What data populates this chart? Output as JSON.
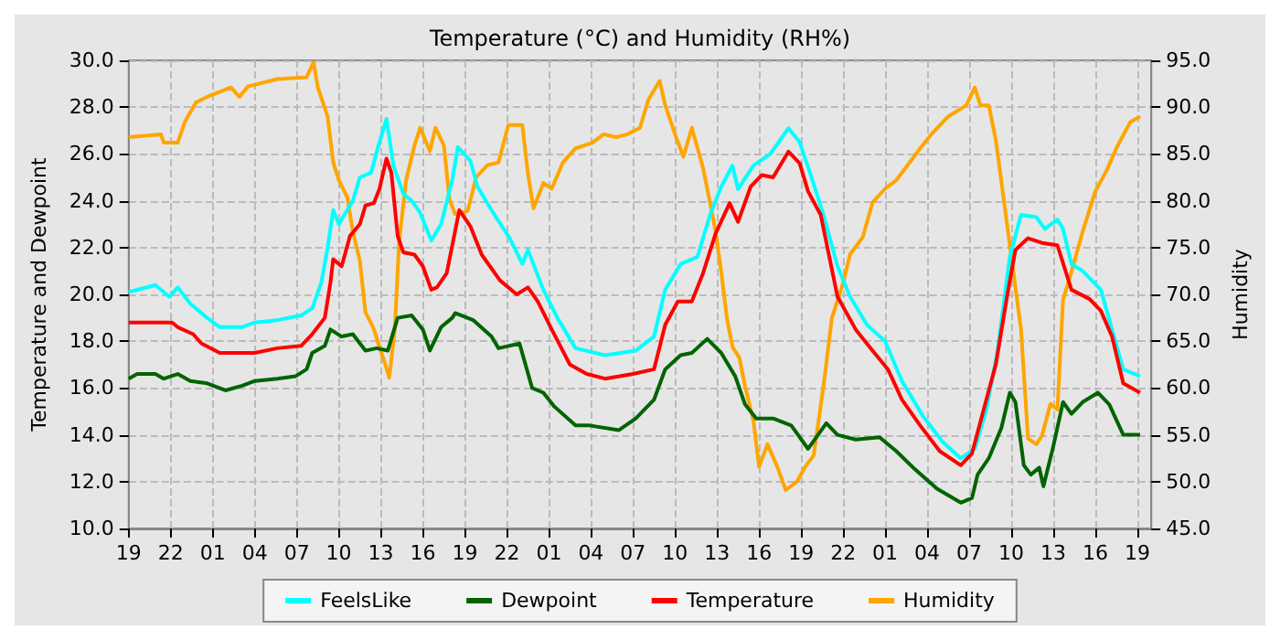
{
  "chart_data": {
    "type": "line",
    "title": "Temperature (°C) and Humidity (RH%)",
    "ylabel": "Temperature and Dewpoint",
    "y2label": "Humidity",
    "xlim": [
      "--01-01T19:00",
      "--01-04T20:00"
    ],
    "xticks": [
      {
        "value": "--01-01T19:00",
        "label": "19"
      },
      {
        "value": "--01-01T22:00",
        "label": "22"
      },
      {
        "value": "--01-02T01:00",
        "label": "01"
      },
      {
        "value": "--01-02T04:00",
        "label": "04"
      },
      {
        "value": "--01-02T07:00",
        "label": "07"
      },
      {
        "value": "--01-02T10:00",
        "label": "10"
      },
      {
        "value": "--01-02T13:00",
        "label": "13"
      },
      {
        "value": "--01-02T16:00",
        "label": "16"
      },
      {
        "value": "--01-02T19:00",
        "label": "19"
      },
      {
        "value": "--01-02T22:00",
        "label": "22"
      },
      {
        "value": "--01-03T01:00",
        "label": "01"
      },
      {
        "value": "--01-03T04:00",
        "label": "04"
      },
      {
        "value": "--01-03T07:00",
        "label": "07"
      },
      {
        "value": "--01-03T10:00",
        "label": "10"
      },
      {
        "value": "--01-03T13:00",
        "label": "13"
      },
      {
        "value": "--01-03T16:00",
        "label": "16"
      },
      {
        "value": "--01-03T19:00",
        "label": "19"
      },
      {
        "value": "--01-03T22:00",
        "label": "22"
      },
      {
        "value": "--01-04T01:00",
        "label": "01"
      },
      {
        "value": "--01-04T04:00",
        "label": "04"
      },
      {
        "value": "--01-04T07:00",
        "label": "07"
      },
      {
        "value": "--01-04T10:00",
        "label": "10"
      },
      {
        "value": "--01-04T13:00",
        "label": "13"
      },
      {
        "value": "--01-04T16:00",
        "label": "16"
      },
      {
        "value": "--01-04T19:00",
        "label": "19"
      }
    ],
    "ylim": [
      10,
      30
    ],
    "yticks": [
      {
        "value": 10,
        "label": "10.0"
      },
      {
        "value": 12,
        "label": "12.0"
      },
      {
        "value": 14,
        "label": "14.0"
      },
      {
        "value": 16,
        "label": "16.0"
      },
      {
        "value": 18,
        "label": "18.0"
      },
      {
        "value": 20,
        "label": "20.0"
      },
      {
        "value": 22,
        "label": "22.0"
      },
      {
        "value": 24,
        "label": "24.0"
      },
      {
        "value": 26,
        "label": "26.0"
      },
      {
        "value": 28,
        "label": "28.0"
      },
      {
        "value": 30,
        "label": "30.0"
      }
    ],
    "y2lim": [
      45,
      95
    ],
    "y2ticks": [
      {
        "value": 45,
        "label": "45.0"
      },
      {
        "value": 50,
        "label": "50.0"
      },
      {
        "value": 55,
        "label": "55.0"
      },
      {
        "value": 60,
        "label": "60.0"
      },
      {
        "value": 65,
        "label": "65.0"
      },
      {
        "value": 70,
        "label": "70.0"
      },
      {
        "value": 75,
        "label": "75.0"
      },
      {
        "value": 80,
        "label": "80.0"
      },
      {
        "value": 85,
        "label": "85.0"
      },
      {
        "value": 90,
        "label": "90.0"
      },
      {
        "value": 95,
        "label": "95.0"
      }
    ],
    "grid": true,
    "legend": "bottom",
    "marker": "none",
    "line_style": "solid",
    "series": [
      {
        "name": "FeelsLike",
        "color": "#00ffff",
        "x": [
          "--01-01T19:00",
          "--01-01T20:54",
          "--01-01T21:54",
          "--01-01T22:30",
          "--01-01T23:24",
          "--01-02T00:36",
          "--01-02T01:30",
          "--01-02T03:06",
          "--01-02T04:00",
          "--01-02T05:36",
          "--01-02T07:18",
          "--01-02T08:06",
          "--01-02T08:45",
          "--01-02T09:12",
          "--01-02T09:36",
          "--01-02T10:00",
          "--01-02T10:36",
          "--01-02T11:00",
          "--01-02T11:30",
          "--01-02T12:18",
          "--01-02T12:54",
          "--01-02T13:24",
          "--01-02T13:54",
          "--01-02T14:36",
          "--01-02T15:12",
          "--01-02T15:48",
          "--01-02T16:36",
          "--01-02T17:18",
          "--01-02T18:06",
          "--01-02T18:30",
          "--01-02T19:24",
          "--01-02T19:54",
          "--01-02T20:54",
          "--01-02T22:12",
          "--01-02T23:06",
          "--01-02T23:30",
          "--01-03T00:36",
          "--01-03T01:36",
          "--01-03T02:54",
          "--01-03T05:00",
          "--01-03T07:12",
          "--01-03T08:30",
          "--01-03T09:18",
          "--01-03T10:24",
          "--01-03T11:36",
          "--01-03T12:30",
          "--01-03T13:18",
          "--01-03T14:06",
          "--01-03T14:30",
          "--01-03T15:36",
          "--01-03T16:48",
          "--01-03T18:06",
          "--01-03T18:54",
          "--01-03T19:48",
          "--01-03T20:36",
          "--01-03T21:36",
          "--01-03T22:30",
          "--01-03T23:42",
          "--01-04T01:00",
          "--01-04T02:12",
          "--01-04T03:42",
          "--01-04T05:06",
          "--01-04T06:24",
          "--01-04T07:24",
          "--01-04T08:12",
          "--01-04T09:00",
          "--01-04T09:54",
          "--01-04T10:42",
          "--01-04T11:48",
          "--01-04T12:24",
          "--01-04T13:18",
          "--01-04T13:42",
          "--01-04T14:18",
          "--01-04T15:06",
          "--01-04T16:24",
          "--01-04T17:12",
          "--01-04T18:00",
          "--01-04T19:12"
        ],
        "values": [
          20.1,
          20.4,
          19.9,
          20.3,
          19.6,
          19.0,
          18.6,
          18.6,
          18.8,
          18.9,
          19.1,
          19.4,
          20.5,
          22.0,
          23.6,
          23.0,
          23.6,
          24.0,
          25.0,
          25.2,
          26.5,
          27.5,
          25.5,
          24.3,
          24.0,
          23.5,
          22.3,
          23.0,
          24.9,
          26.3,
          25.7,
          24.6,
          23.6,
          22.4,
          21.3,
          21.9,
          20.2,
          19.0,
          17.7,
          17.4,
          17.6,
          18.2,
          20.2,
          21.3,
          21.6,
          23.4,
          24.6,
          25.5,
          24.5,
          25.5,
          26.0,
          27.1,
          26.5,
          24.9,
          23.4,
          21.2,
          19.9,
          18.7,
          18.0,
          16.3,
          14.8,
          13.7,
          13.0,
          13.4,
          15.0,
          17.5,
          21.6,
          23.4,
          23.3,
          22.8,
          23.2,
          22.8,
          21.3,
          21.0,
          20.2,
          18.5,
          16.8,
          16.5
        ]
      },
      {
        "name": "Dewpoint",
        "color": "#006400",
        "x": [
          "--01-01T19:00",
          "--01-01T19:36",
          "--01-01T20:54",
          "--01-01T21:30",
          "--01-01T22:30",
          "--01-01T23:24",
          "--01-02T00:36",
          "--01-02T01:54",
          "--01-02T03:06",
          "--01-02T04:00",
          "--01-02T05:36",
          "--01-02T06:54",
          "--01-02T07:42",
          "--01-02T08:06",
          "--01-02T09:00",
          "--01-02T09:24",
          "--01-02T10:12",
          "--01-02T11:00",
          "--01-02T11:54",
          "--01-02T12:42",
          "--01-02T13:30",
          "--01-02T14:12",
          "--01-02T15:12",
          "--01-02T16:00",
          "--01-02T16:30",
          "--01-02T17:18",
          "--01-02T18:06",
          "--01-02T18:18",
          "--01-02T19:36",
          "--01-02T20:54",
          "--01-02T21:24",
          "--01-02T22:54",
          "--01-02T23:48",
          "--01-03T00:36",
          "--01-03T01:24",
          "--01-03T02:54",
          "--01-03T03:54",
          "--01-03T06:00",
          "--01-03T07:12",
          "--01-03T08:30",
          "--01-03T09:18",
          "--01-03T10:24",
          "--01-03T11:12",
          "--01-03T12:18",
          "--01-03T13:18",
          "--01-03T14:18",
          "--01-03T15:00",
          "--01-03T15:48",
          "--01-03T17:00",
          "--01-03T18:18",
          "--01-03T19:30",
          "--01-03T20:48",
          "--01-03T21:36",
          "--01-03T22:54",
          "--01-04T00:36",
          "--01-04T01:48",
          "--01-04T03:00",
          "--01-04T04:42",
          "--01-04T06:24",
          "--01-04T07:12",
          "--01-04T07:36",
          "--01-04T08:24",
          "--01-04T09:18",
          "--01-04T09:54",
          "--01-04T10:18",
          "--01-04T10:54",
          "--01-04T11:24",
          "--01-04T12:00",
          "--01-04T12:18",
          "--01-04T13:00",
          "--01-04T13:42",
          "--01-04T14:18",
          "--01-04T15:06",
          "--01-04T16:12",
          "--01-04T17:00",
          "--01-04T18:00",
          "--01-04T19:12"
        ],
        "values": [
          16.4,
          16.6,
          16.6,
          16.4,
          16.6,
          16.3,
          16.2,
          15.9,
          16.1,
          16.3,
          16.4,
          16.5,
          16.8,
          17.5,
          17.8,
          18.5,
          18.2,
          18.3,
          17.6,
          17.7,
          17.6,
          19.0,
          19.1,
          18.5,
          17.6,
          18.6,
          19.0,
          19.2,
          18.9,
          18.2,
          17.7,
          17.9,
          16.0,
          15.8,
          15.2,
          14.4,
          14.4,
          14.2,
          14.7,
          15.5,
          16.8,
          17.4,
          17.5,
          18.1,
          17.5,
          16.5,
          15.3,
          14.7,
          14.7,
          14.4,
          13.4,
          14.5,
          14.0,
          13.8,
          13.9,
          13.3,
          12.6,
          11.7,
          11.1,
          11.3,
          12.3,
          13.0,
          14.3,
          15.8,
          15.4,
          12.7,
          12.3,
          12.6,
          11.8,
          13.5,
          15.4,
          14.9,
          15.4,
          15.8,
          15.3,
          14.0,
          14.0
        ]
      },
      {
        "name": "Temperature",
        "color": "#ff0000",
        "x": [
          "--01-01T19:00",
          "--01-01T22:06",
          "--01-01T22:30",
          "--01-01T23:36",
          "--01-02T00:12",
          "--01-02T01:30",
          "--01-02T04:00",
          "--01-02T05:36",
          "--01-02T07:18",
          "--01-02T08:06",
          "--01-02T09:00",
          "--01-02T09:24",
          "--01-02T09:36",
          "--01-02T10:12",
          "--01-02T10:48",
          "--01-02T11:30",
          "--01-02T11:54",
          "--01-02T12:30",
          "--01-02T12:54",
          "--01-02T13:24",
          "--01-02T13:45",
          "--01-02T14:12",
          "--01-02T14:36",
          "--01-02T15:24",
          "--01-02T16:00",
          "--01-02T16:36",
          "--01-02T17:00",
          "--01-02T17:42",
          "--01-02T18:36",
          "--01-02T19:24",
          "--01-02T20:12",
          "--01-02T21:30",
          "--01-02T22:42",
          "--01-02T23:30",
          "--01-03T00:12",
          "--01-03T01:12",
          "--01-03T02:30",
          "--01-03T03:42",
          "--01-03T05:00",
          "--01-03T07:00",
          "--01-03T08:30",
          "--01-03T09:18",
          "--01-03T10:12",
          "--01-03T11:12",
          "--01-03T12:00",
          "--01-03T12:54",
          "--01-03T13:54",
          "--01-03T14:30",
          "--01-03T15:24",
          "--01-03T16:12",
          "--01-03T17:00",
          "--01-03T18:06",
          "--01-03T18:54",
          "--01-03T19:30",
          "--01-03T20:24",
          "--01-03T21:36",
          "--01-03T22:54",
          "--01-04T00:06",
          "--01-04T01:12",
          "--01-04T02:12",
          "--01-04T03:30",
          "--01-04T04:54",
          "--01-04T06:24",
          "--01-04T07:12",
          "--01-04T08:00",
          "--01-04T08:54",
          "--01-04T09:42",
          "--01-04T10:18",
          "--01-04T11:12",
          "--01-04T12:12",
          "--01-04T13:18",
          "--01-04T14:18",
          "--01-04T15:36",
          "--01-04T16:24",
          "--01-04T17:12",
          "--01-04T18:00",
          "--01-04T19:12"
        ],
        "values": [
          18.8,
          18.8,
          18.6,
          18.3,
          17.9,
          17.5,
          17.5,
          17.7,
          17.8,
          18.3,
          19.0,
          20.5,
          21.5,
          21.2,
          22.5,
          23.0,
          23.8,
          23.9,
          24.5,
          25.8,
          25.2,
          22.5,
          21.8,
          21.7,
          21.2,
          20.2,
          20.3,
          20.9,
          23.6,
          22.9,
          21.7,
          20.6,
          20.0,
          20.3,
          19.7,
          18.5,
          17.0,
          16.6,
          16.4,
          16.6,
          16.8,
          18.7,
          19.7,
          19.7,
          20.9,
          22.6,
          23.9,
          23.1,
          24.6,
          25.1,
          25.0,
          26.1,
          25.6,
          24.4,
          23.4,
          19.9,
          18.5,
          17.6,
          16.8,
          15.5,
          14.4,
          13.3,
          12.7,
          13.2,
          15.0,
          17.0,
          19.9,
          21.9,
          22.4,
          22.2,
          22.1,
          20.2,
          19.8,
          19.3,
          18.2,
          16.2,
          15.8
        ]
      },
      {
        "name": "Humidity",
        "color": "#ffa500",
        "axis": "y2",
        "x": [
          "--01-01T19:00",
          "--01-01T21:18",
          "--01-01T21:30",
          "--01-01T22:30",
          "--01-01T23:00",
          "--01-01T23:48",
          "--01-02T00:36",
          "--01-02T02:18",
          "--01-02T02:54",
          "--01-02T03:30",
          "--01-02T05:36",
          "--01-02T07:42",
          "--01-02T08:12",
          "--01-02T08:30",
          "--01-02T09:12",
          "--01-02T09:36",
          "--01-02T10:00",
          "--01-02T10:36",
          "--01-02T11:00",
          "--01-02T11:30",
          "--01-02T11:54",
          "--01-02T12:30",
          "--01-02T12:54",
          "--01-02T13:18",
          "--01-02T13:36",
          "--01-02T14:00",
          "--01-02T14:18",
          "--01-02T14:48",
          "--01-02T15:24",
          "--01-02T15:48",
          "--01-02T16:30",
          "--01-02T16:54",
          "--01-02T17:30",
          "--01-02T17:54",
          "--01-02T18:18",
          "--01-02T19:12",
          "--01-02T19:48",
          "--01-02T20:36",
          "--01-02T21:24",
          "--01-02T22:06",
          "--01-02T23:06",
          "--01-02T23:30",
          "--01-02T23:54",
          "--01-03T00:36",
          "--01-03T01:12",
          "--01-03T02:00",
          "--01-03T02:54",
          "--01-03T04:06",
          "--01-03T04:54",
          "--01-03T05:48",
          "--01-03T06:36",
          "--01-03T07:30",
          "--01-03T08:06",
          "--01-03T08:54",
          "--01-03T09:18",
          "--01-03T10:00",
          "--01-03T10:36",
          "--01-03T11:12",
          "--01-03T12:00",
          "--01-03T12:30",
          "--01-03T12:54",
          "--01-03T13:18",
          "--01-03T13:42",
          "--01-03T14:06",
          "--01-03T14:36",
          "--01-03T15:00",
          "--01-03T15:36",
          "--01-03T16:00",
          "--01-03T16:36",
          "--01-03T17:18",
          "--01-03T17:54",
          "--01-03T18:42",
          "--01-03T19:18",
          "--01-03T19:54",
          "--01-03T20:36",
          "--01-03T21:12",
          "--01-03T22:00",
          "--01-03T22:30",
          "--01-03T23:24",
          "--01-04T00:06",
          "--01-04T01:00",
          "--01-04T01:48",
          "--01-04T02:36",
          "--01-04T03:30",
          "--01-04T04:18",
          "--01-04T05:30",
          "--01-04T06:48",
          "--01-04T07:24",
          "--01-04T07:48",
          "--01-04T08:24",
          "--01-04T08:54",
          "--01-04T09:30",
          "--01-04T10:06",
          "--01-04T10:42",
          "--01-04T11:12",
          "--01-04T11:48",
          "--01-04T12:12",
          "--01-04T12:48",
          "--01-04T13:18",
          "--01-04T13:42",
          "--01-04T14:18",
          "--01-04T15:06",
          "--01-04T16:00",
          "--01-04T16:48",
          "--01-04T17:36",
          "--01-04T18:30",
          "--01-04T19:12"
        ],
        "values": [
          86.8,
          87.1,
          86.2,
          86.2,
          88.4,
          90.5,
          91.1,
          92.1,
          91.1,
          92.2,
          93.0,
          93.2,
          94.8,
          92.1,
          89.0,
          84.1,
          82.2,
          80.4,
          76.7,
          73.6,
          68.1,
          66.3,
          64.4,
          62.6,
          61.1,
          66.3,
          75.5,
          82.2,
          85.9,
          87.8,
          85.3,
          87.8,
          85.9,
          80.1,
          78.6,
          78.9,
          82.5,
          83.8,
          84.1,
          88.1,
          88.1,
          82.9,
          79.2,
          81.9,
          81.3,
          84.1,
          85.6,
          86.2,
          87.1,
          86.8,
          87.1,
          87.8,
          90.8,
          92.8,
          90.2,
          87.1,
          84.7,
          87.8,
          83.5,
          79.8,
          76.7,
          72.4,
          67.5,
          64.4,
          63.2,
          60.2,
          56.5,
          51.6,
          54.0,
          51.6,
          49.1,
          50.0,
          51.6,
          52.8,
          60.2,
          67.5,
          71.2,
          74.3,
          76.1,
          79.8,
          81.3,
          82.2,
          83.8,
          85.6,
          87.1,
          89.0,
          90.2,
          92.1,
          90.2,
          90.2,
          86.5,
          79.8,
          73.0,
          66.3,
          54.6,
          54.0,
          54.9,
          58.3,
          57.7,
          69.4,
          72.4,
          76.7,
          81.0,
          83.2,
          85.9,
          88.4,
          89.0
        ]
      }
    ]
  }
}
